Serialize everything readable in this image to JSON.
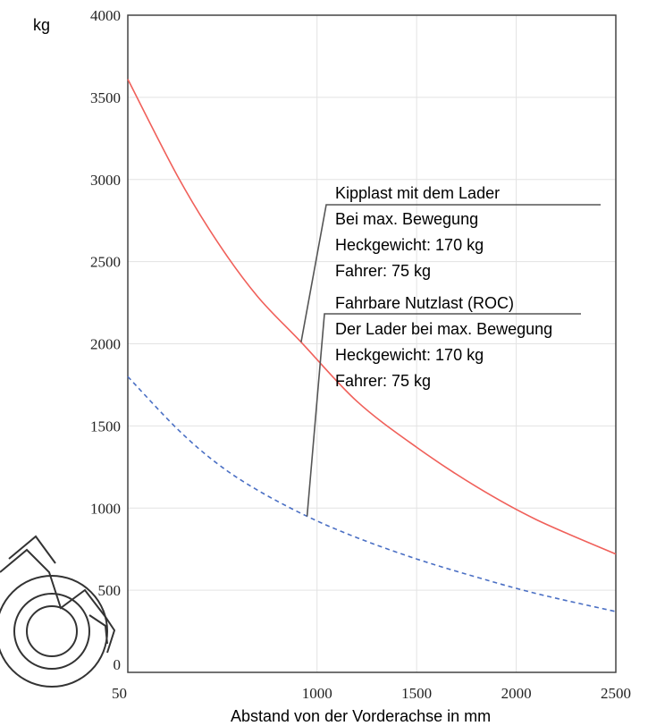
{
  "chart_data": {
    "type": "line",
    "title": "",
    "xlabel": "Abstand von der Vorderachse in mm",
    "ylabel": "kg",
    "xlim": [
      50,
      2500
    ],
    "ylim": [
      0,
      4000
    ],
    "x_ticks": [
      "50",
      "1000",
      "1500",
      "2000",
      "2500"
    ],
    "y_ticks": [
      "0",
      "500",
      "1000",
      "1500",
      "2000",
      "2500",
      "3000",
      "3500",
      "4000"
    ],
    "grid": true,
    "series": [
      {
        "color": "#f0605a",
        "style": "solid",
        "x": [
          50,
          300,
          500,
          700,
          920,
          1200,
          1500,
          1800,
          2100,
          2500
        ],
        "y": [
          3610,
          3020,
          2620,
          2290,
          2010,
          1650,
          1370,
          1130,
          930,
          720
        ]
      },
      {
        "color": "#4a6fc4",
        "style": "dashed",
        "x": [
          50,
          300,
          500,
          700,
          950,
          1200,
          1500,
          1800,
          2100,
          2500
        ],
        "y": [
          1800,
          1480,
          1270,
          1110,
          950,
          820,
          690,
          580,
          480,
          370
        ]
      }
    ],
    "annotations": [
      {
        "lines": [
          "Kipplast mit dem Lader",
          "Bei max. Bewegung",
          "Heckgewicht: 170 kg",
          "Fahrer: 75 kg"
        ],
        "x": 920,
        "y": 2010
      },
      {
        "lines": [
          "Fahrbare Nutzlast (ROC)",
          "Der Lader bei max. Bewegung",
          "Heckgewicht: 170 kg",
          "Fahrer: 75 kg"
        ],
        "x": 950,
        "y": 950
      }
    ]
  },
  "icons": {
    "wheel_drawing": "tractor-wheel-illustration"
  }
}
